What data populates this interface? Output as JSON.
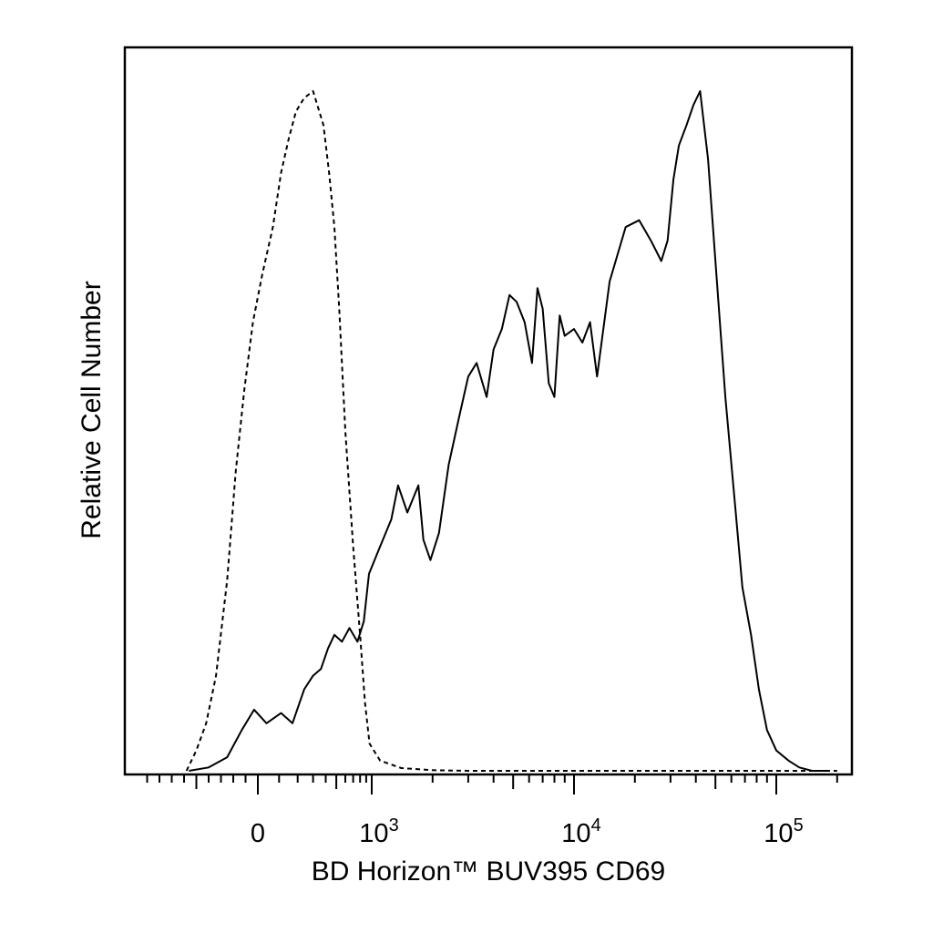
{
  "chart_data": {
    "type": "line",
    "title": "",
    "xlabel": "BD Horizon™ BUV395 CD69",
    "ylabel": "Relative Cell Number",
    "x_scale": "biexponential (linear near 0, log above 10^3)",
    "xlim": [
      -900,
      250000
    ],
    "ylim": [
      0,
      1
    ],
    "grid": false,
    "legend": "none",
    "x_ticks": [
      {
        "value": 0,
        "base": "0",
        "exp": ""
      },
      {
        "value": 1000,
        "base": "10",
        "exp": "3"
      },
      {
        "value": 10000,
        "base": "10",
        "exp": "4"
      },
      {
        "value": 100000,
        "base": "10",
        "exp": "5"
      }
    ],
    "series": [
      {
        "style": "dashed",
        "color": "#000000",
        "x": [
          -580,
          -500,
          -420,
          -340,
          -250,
          -180,
          -110,
          -40,
          20,
          70,
          110,
          150,
          190,
          240,
          300,
          380,
          430,
          480,
          530,
          600,
          700,
          800,
          880,
          960,
          1100,
          1400,
          2000,
          3000,
          5000,
          10000,
          50000,
          100000,
          200000
        ],
        "y": [
          0.0,
          0.03,
          0.07,
          0.14,
          0.28,
          0.44,
          0.56,
          0.66,
          0.73,
          0.8,
          0.88,
          0.93,
          0.97,
          0.99,
          1.0,
          0.95,
          0.88,
          0.8,
          0.68,
          0.5,
          0.33,
          0.2,
          0.1,
          0.04,
          0.015,
          0.004,
          0.001,
          0.0,
          0.0,
          0.0,
          0.0,
          0.0,
          0.0
        ]
      },
      {
        "style": "solid",
        "color": "#000000",
        "x": [
          -560,
          -400,
          -250,
          -130,
          -30,
          40,
          110,
          170,
          240,
          300,
          360,
          420,
          480,
          560,
          650,
          760,
          860,
          950,
          1100,
          1250,
          1350,
          1500,
          1700,
          1800,
          1950,
          2150,
          2400,
          2700,
          3000,
          3300,
          3700,
          4000,
          4400,
          4800,
          5200,
          5700,
          6200,
          6600,
          7000,
          7500,
          8000,
          8500,
          9000,
          10000,
          11000,
          12000,
          13000,
          15000,
          18000,
          21000,
          24000,
          27000,
          29000,
          31000,
          33000,
          36000,
          39000,
          42000,
          46000,
          50000,
          56000,
          63000,
          68000,
          75000,
          82000,
          90000,
          100000,
          115000,
          130000,
          150000,
          175000
        ],
        "y": [
          0.0,
          0.005,
          0.02,
          0.06,
          0.09,
          0.07,
          0.085,
          0.07,
          0.12,
          0.14,
          0.15,
          0.18,
          0.2,
          0.19,
          0.21,
          0.19,
          0.22,
          0.29,
          0.33,
          0.37,
          0.42,
          0.38,
          0.42,
          0.34,
          0.31,
          0.35,
          0.45,
          0.52,
          0.58,
          0.6,
          0.55,
          0.62,
          0.65,
          0.7,
          0.69,
          0.66,
          0.6,
          0.71,
          0.68,
          0.57,
          0.55,
          0.67,
          0.64,
          0.65,
          0.63,
          0.66,
          0.58,
          0.72,
          0.8,
          0.81,
          0.78,
          0.75,
          0.78,
          0.87,
          0.92,
          0.95,
          0.98,
          1.0,
          0.9,
          0.75,
          0.55,
          0.38,
          0.27,
          0.2,
          0.12,
          0.06,
          0.03,
          0.015,
          0.005,
          0.0,
          0.0
        ]
      }
    ]
  }
}
